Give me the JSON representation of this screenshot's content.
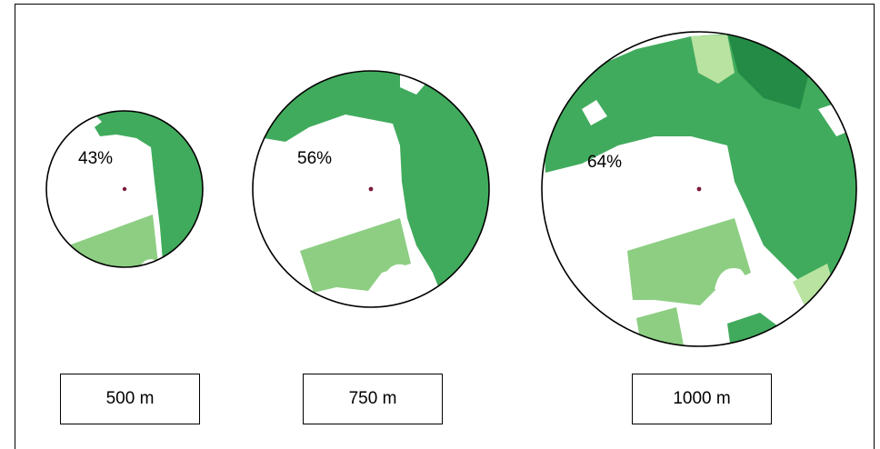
{
  "colors": {
    "green_main": "#41ab5d",
    "green_light": "#8dce83",
    "green_pale": "#b9e3a0",
    "green_dark": "#238b45",
    "center_dot": "#7a1b3c",
    "outline": "#000000"
  },
  "buffers": [
    {
      "id": "buffer-500",
      "radius_label": "500 m",
      "green_share": "43%"
    },
    {
      "id": "buffer-750",
      "radius_label": "750 m",
      "green_share": "56%"
    },
    {
      "id": "buffer-1000",
      "radius_label": "1000 m",
      "green_share": "64%"
    }
  ]
}
